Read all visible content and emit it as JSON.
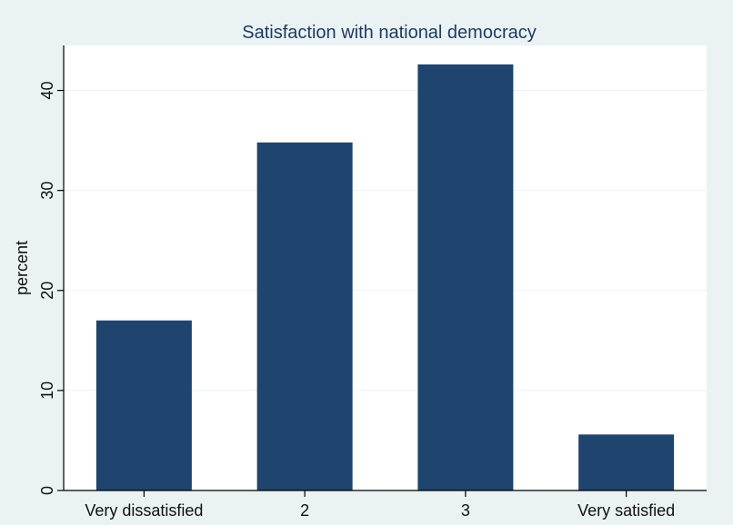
{
  "chart_data": {
    "type": "bar",
    "title": "Satisfaction with national democracy",
    "xlabel": "",
    "ylabel": "percent",
    "categories": [
      "Very dissatisfied",
      "2",
      "3",
      "Very satisfied"
    ],
    "values": [
      17.0,
      34.8,
      42.6,
      5.6
    ],
    "ylim": [
      0,
      44.5
    ],
    "yticks": [
      0,
      10,
      20,
      30,
      40
    ],
    "grid": true,
    "legend": "none",
    "colors": {
      "bar": "#1f456e",
      "plot_background": "#ffffff",
      "outer_background": "#eaf2f3",
      "title": "#1e3a5f"
    }
  }
}
